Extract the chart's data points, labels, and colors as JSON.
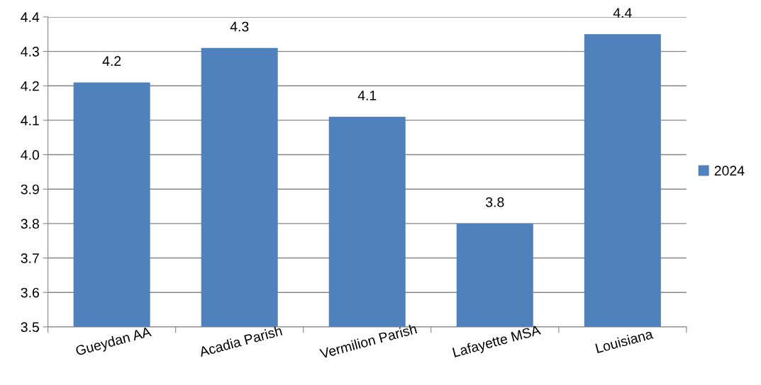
{
  "chart_data": {
    "type": "bar",
    "categories": [
      "Gueydan AA",
      "Acadia Parish",
      "Vermilion Parish",
      "Lafayette MSA",
      "Louisiana"
    ],
    "series": [
      {
        "name": "2024",
        "color": "#4f81bd",
        "values": [
          4.21,
          4.31,
          4.11,
          3.8,
          4.35
        ],
        "value_labels": [
          "4.2",
          "4.3",
          "4.1",
          "3.8",
          "4.4"
        ]
      }
    ],
    "ylim": [
      3.5,
      4.4
    ],
    "yticks": [
      {
        "value": 3.5,
        "label": "3.5"
      },
      {
        "value": 3.6,
        "label": "3.6"
      },
      {
        "value": 3.7,
        "label": "3.7"
      },
      {
        "value": 3.8,
        "label": "3.8"
      },
      {
        "value": 3.9,
        "label": "3.9"
      },
      {
        "value": 4.0,
        "label": "4.0"
      },
      {
        "value": 4.1,
        "label": "4.1"
      },
      {
        "value": 4.2,
        "label": "4.2"
      },
      {
        "value": 4.3,
        "label": "4.3"
      },
      {
        "value": 4.4,
        "label": "4.4"
      }
    ],
    "grid": "y",
    "legend": "right"
  }
}
